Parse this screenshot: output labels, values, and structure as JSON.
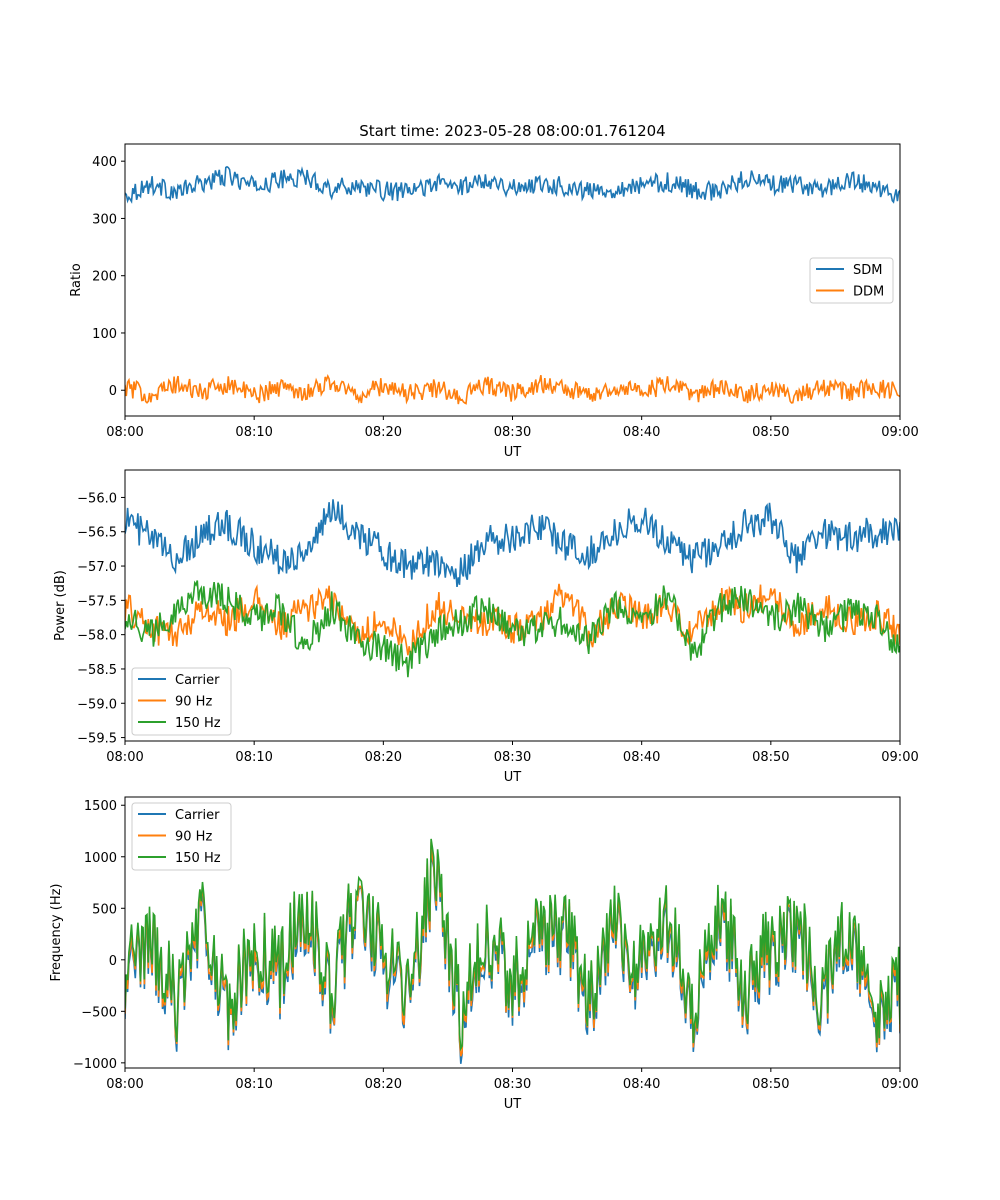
{
  "figure": {
    "title": "Start time: 2023-05-28 08:00:01.761204"
  },
  "colors": {
    "series_1": "#1f77b4",
    "series_2": "#ff7f0e",
    "series_3": "#2ca02c"
  },
  "chart_data": [
    {
      "type": "line",
      "title": "Start time: 2023-05-28 08:00:01.761204",
      "xlabel": "UT",
      "ylabel": "Ratio",
      "x_range": [
        "08:00",
        "09:00"
      ],
      "x_ticks": [
        "08:00",
        "08:10",
        "08:20",
        "08:30",
        "08:40",
        "08:50",
        "09:00"
      ],
      "ylim": [
        -45,
        430
      ],
      "y_ticks": [
        0,
        100,
        200,
        300,
        400
      ],
      "grid": false,
      "legend_position": "center-right",
      "x_minutes": [
        0,
        2,
        4,
        6,
        8,
        10,
        12,
        14,
        16,
        18,
        20,
        22,
        24,
        26,
        28,
        30,
        32,
        34,
        36,
        38,
        40,
        42,
        44,
        46,
        48,
        50,
        52,
        54,
        56,
        58,
        60
      ],
      "series": [
        {
          "name": "SDM",
          "values": [
            340,
            360,
            345,
            362,
            375,
            355,
            368,
            372,
            352,
            358,
            348,
            346,
            362,
            355,
            370,
            352,
            362,
            356,
            347,
            352,
            358,
            364,
            350,
            346,
            372,
            360,
            357,
            352,
            366,
            358,
            335
          ]
        },
        {
          "name": "DDM",
          "values": [
            5,
            -8,
            10,
            -4,
            12,
            -9,
            6,
            -3,
            15,
            -10,
            8,
            -6,
            4,
            -12,
            10,
            -5,
            12,
            3,
            -8,
            6,
            -2,
            9,
            -7,
            4,
            -9,
            6,
            -12,
            8,
            -4,
            6,
            -5
          ]
        }
      ]
    },
    {
      "type": "line",
      "xlabel": "UT",
      "ylabel": "Power (dB)",
      "x_range": [
        "08:00",
        "09:00"
      ],
      "x_ticks": [
        "08:00",
        "08:10",
        "08:20",
        "08:30",
        "08:40",
        "08:50",
        "09:00"
      ],
      "ylim": [
        -59.55,
        -55.6
      ],
      "y_ticks": [
        -59.5,
        -59.0,
        -58.5,
        -58.0,
        -57.5,
        -57.0,
        -56.5,
        -56.0
      ],
      "grid": false,
      "legend_position": "lower-left",
      "x_minutes": [
        0,
        2,
        4,
        6,
        8,
        10,
        12,
        14,
        16,
        18,
        20,
        22,
        24,
        26,
        28,
        30,
        32,
        34,
        36,
        38,
        40,
        42,
        44,
        46,
        48,
        50,
        52,
        54,
        56,
        58,
        60
      ],
      "series": [
        {
          "name": "Carrier",
          "values": [
            -56.3,
            -56.6,
            -56.9,
            -56.5,
            -56.4,
            -56.7,
            -56.9,
            -56.8,
            -56.2,
            -56.5,
            -56.8,
            -57.0,
            -56.9,
            -57.1,
            -56.6,
            -56.6,
            -56.4,
            -56.7,
            -56.8,
            -56.5,
            -56.3,
            -56.6,
            -56.9,
            -56.7,
            -56.4,
            -56.3,
            -56.9,
            -56.5,
            -56.6,
            -56.5,
            -56.5
          ]
        },
        {
          "name": "90 Hz",
          "values": [
            -57.6,
            -57.9,
            -58.0,
            -57.6,
            -57.8,
            -57.5,
            -57.9,
            -57.6,
            -57.5,
            -58.0,
            -57.8,
            -58.2,
            -57.6,
            -57.7,
            -57.8,
            -57.9,
            -57.8,
            -57.4,
            -58.0,
            -57.6,
            -57.7,
            -57.6,
            -58.0,
            -57.5,
            -57.6,
            -57.4,
            -57.9,
            -57.6,
            -57.8,
            -57.7,
            -58.0
          ]
        },
        {
          "name": "150 Hz",
          "values": [
            -57.7,
            -58.0,
            -57.6,
            -57.4,
            -57.5,
            -57.8,
            -57.6,
            -58.2,
            -57.6,
            -58.1,
            -58.2,
            -58.4,
            -58.0,
            -57.8,
            -57.6,
            -58.0,
            -57.9,
            -57.8,
            -58.1,
            -57.6,
            -57.8,
            -57.4,
            -58.3,
            -57.6,
            -57.5,
            -57.8,
            -57.6,
            -57.9,
            -57.7,
            -57.7,
            -58.2
          ]
        }
      ]
    },
    {
      "type": "line",
      "xlabel": "UT",
      "ylabel": "Frequency (Hz)",
      "x_range": [
        "08:00",
        "09:00"
      ],
      "x_ticks": [
        "08:00",
        "08:10",
        "08:20",
        "08:30",
        "08:40",
        "08:50",
        "09:00"
      ],
      "ylim": [
        -1050,
        1580
      ],
      "y_ticks": [
        -1000,
        -500,
        0,
        500,
        1000,
        1500
      ],
      "grid": false,
      "legend_position": "upper-left",
      "x_minutes": [
        0,
        2,
        4,
        6,
        8,
        10,
        12,
        14,
        16,
        18,
        20,
        22,
        24,
        26,
        28,
        30,
        32,
        34,
        36,
        38,
        40,
        42,
        44,
        46,
        48,
        50,
        52,
        54,
        56,
        58,
        60
      ],
      "series": [
        {
          "name": "Carrier",
          "values": [
            -300,
            200,
            -500,
            350,
            -600,
            100,
            -200,
            450,
            -350,
            600,
            0,
            -400,
            900,
            -600,
            200,
            -300,
            150,
            250,
            -500,
            300,
            -200,
            350,
            -700,
            500,
            -400,
            100,
            250,
            -450,
            300,
            -600,
            -350
          ]
        },
        {
          "name": "90 Hz",
          "values": [
            -250,
            250,
            -450,
            400,
            -550,
            150,
            -150,
            500,
            -300,
            650,
            50,
            -350,
            950,
            -550,
            250,
            -250,
            200,
            300,
            -450,
            350,
            -150,
            400,
            -650,
            550,
            -350,
            150,
            300,
            -400,
            350,
            -550,
            -300
          ]
        },
        {
          "name": "150 Hz",
          "values": [
            -200,
            300,
            -400,
            450,
            -500,
            200,
            -100,
            550,
            -250,
            700,
            100,
            -300,
            1000,
            -500,
            300,
            -200,
            250,
            350,
            -400,
            400,
            -100,
            450,
            -600,
            600,
            -300,
            200,
            350,
            -350,
            400,
            -500,
            -250
          ]
        }
      ]
    }
  ]
}
